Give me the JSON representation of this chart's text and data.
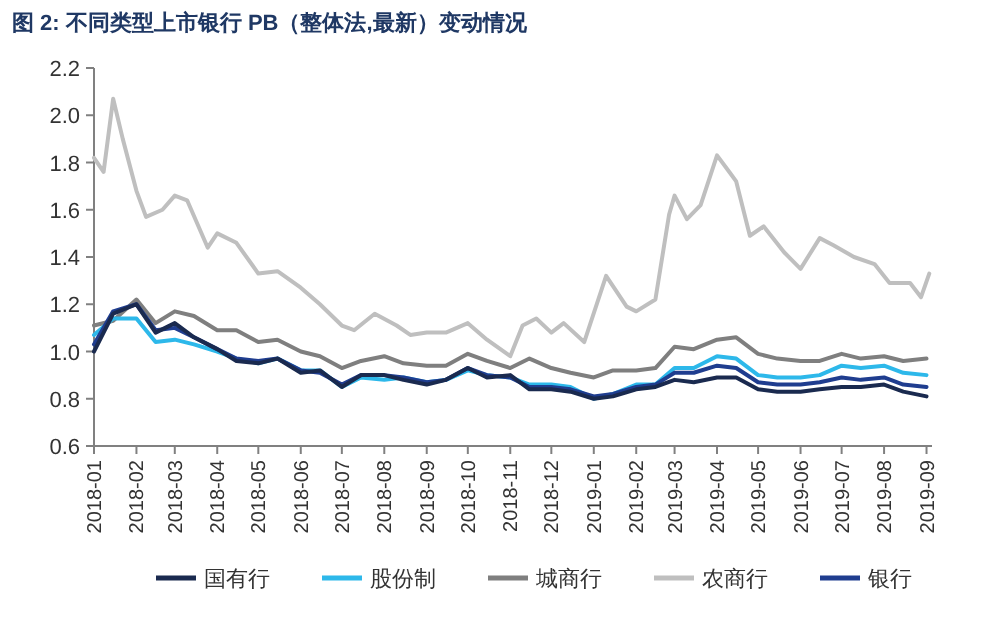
{
  "chart_data": {
    "type": "line",
    "title": "图 2:  不同类型上市银行 PB（整体法,最新）变动情况",
    "x": [
      "2018-01-01",
      "2018-01-15",
      "2018-02-01",
      "2018-02-15",
      "2018-03-01",
      "2018-03-15",
      "2018-04-01",
      "2018-04-15",
      "2018-05-01",
      "2018-05-15",
      "2018-06-01",
      "2018-06-15",
      "2018-07-01",
      "2018-07-15",
      "2018-08-01",
      "2018-08-15",
      "2018-09-01",
      "2018-09-15",
      "2018-10-01",
      "2018-10-15",
      "2018-11-01",
      "2018-11-15",
      "2018-12-01",
      "2018-12-15",
      "2019-01-01",
      "2019-01-15",
      "2019-02-01",
      "2019-02-15",
      "2019-03-01",
      "2019-03-15",
      "2019-04-01",
      "2019-04-15",
      "2019-05-01",
      "2019-05-15",
      "2019-06-01",
      "2019-06-15",
      "2019-07-01",
      "2019-07-15",
      "2019-08-01",
      "2019-08-15",
      "2019-09-01"
    ],
    "series": [
      {
        "name": "国有行",
        "color": "#1a2a4f",
        "values": [
          1.0,
          1.16,
          1.2,
          1.08,
          1.12,
          1.06,
          1.01,
          0.96,
          0.95,
          0.97,
          0.91,
          0.92,
          0.85,
          0.9,
          0.9,
          0.88,
          0.86,
          0.88,
          0.93,
          0.89,
          0.9,
          0.84,
          0.84,
          0.83,
          0.8,
          0.81,
          0.84,
          0.85,
          0.88,
          0.87,
          0.89,
          0.89,
          0.84,
          0.83,
          0.83,
          0.84,
          0.85,
          0.85,
          0.86,
          0.83,
          0.81
        ]
      },
      {
        "name": "股份制",
        "color": "#2db8ea",
        "values": [
          1.07,
          1.14,
          1.14,
          1.04,
          1.05,
          1.03,
          1.0,
          0.97,
          0.95,
          0.97,
          0.92,
          0.92,
          0.85,
          0.89,
          0.88,
          0.89,
          0.87,
          0.88,
          0.92,
          0.9,
          0.89,
          0.86,
          0.86,
          0.85,
          0.8,
          0.82,
          0.86,
          0.86,
          0.93,
          0.93,
          0.98,
          0.97,
          0.9,
          0.89,
          0.89,
          0.9,
          0.94,
          0.93,
          0.94,
          0.91,
          0.9
        ]
      },
      {
        "name": "城商行",
        "color": "#7f7f7f",
        "values": [
          1.11,
          1.13,
          1.22,
          1.12,
          1.17,
          1.15,
          1.09,
          1.09,
          1.04,
          1.05,
          1.0,
          0.98,
          0.93,
          0.96,
          0.98,
          0.95,
          0.94,
          0.94,
          0.99,
          0.96,
          0.93,
          0.97,
          0.93,
          0.91,
          0.89,
          0.92,
          0.92,
          0.93,
          1.02,
          1.01,
          1.05,
          1.06,
          0.99,
          0.97,
          0.96,
          0.96,
          0.99,
          0.97,
          0.98,
          0.96,
          0.97
        ]
      },
      {
        "name": "农商行",
        "color": "#bfbfbf",
        "x": [
          "2018-01-01",
          "2018-01-08",
          "2018-01-15",
          "2018-01-22",
          "2018-02-01",
          "2018-02-08",
          "2018-02-20",
          "2018-03-01",
          "2018-03-10",
          "2018-03-25",
          "2018-04-01",
          "2018-04-15",
          "2018-05-01",
          "2018-05-15",
          "2018-06-01",
          "2018-06-15",
          "2018-07-01",
          "2018-07-10",
          "2018-07-25",
          "2018-08-10",
          "2018-08-20",
          "2018-09-01",
          "2018-09-15",
          "2018-10-01",
          "2018-10-15",
          "2018-11-01",
          "2018-11-10",
          "2018-11-20",
          "2018-12-01",
          "2018-12-10",
          "2018-12-25",
          "2019-01-10",
          "2019-01-25",
          "2019-02-01",
          "2019-02-15",
          "2019-02-25",
          "2019-03-01",
          "2019-03-10",
          "2019-03-20",
          "2019-04-01",
          "2019-04-10",
          "2019-04-15",
          "2019-04-25",
          "2019-05-05",
          "2019-05-20",
          "2019-06-01",
          "2019-06-15",
          "2019-06-25",
          "2019-07-10",
          "2019-07-25",
          "2019-08-05",
          "2019-08-20",
          "2019-08-28",
          "2019-09-03"
        ],
        "values": [
          1.82,
          1.76,
          2.07,
          1.9,
          1.68,
          1.57,
          1.6,
          1.66,
          1.64,
          1.44,
          1.5,
          1.46,
          1.33,
          1.34,
          1.27,
          1.2,
          1.11,
          1.09,
          1.16,
          1.11,
          1.07,
          1.08,
          1.08,
          1.12,
          1.05,
          0.98,
          1.11,
          1.14,
          1.08,
          1.12,
          1.04,
          1.32,
          1.19,
          1.17,
          1.22,
          1.58,
          1.66,
          1.56,
          1.62,
          1.83,
          1.76,
          1.72,
          1.49,
          1.53,
          1.42,
          1.35,
          1.48,
          1.45,
          1.4,
          1.37,
          1.29,
          1.29,
          1.23,
          1.33
        ]
      },
      {
        "name": "银行",
        "color": "#1f3d8f",
        "values": [
          1.03,
          1.17,
          1.2,
          1.09,
          1.1,
          1.06,
          1.01,
          0.97,
          0.96,
          0.97,
          0.92,
          0.91,
          0.86,
          0.9,
          0.9,
          0.89,
          0.87,
          0.88,
          0.93,
          0.9,
          0.89,
          0.85,
          0.85,
          0.84,
          0.81,
          0.82,
          0.85,
          0.86,
          0.91,
          0.91,
          0.94,
          0.93,
          0.87,
          0.86,
          0.86,
          0.87,
          0.89,
          0.88,
          0.89,
          0.86,
          0.85
        ]
      }
    ],
    "xlim": [
      "2018-01-01",
      "2019-09-05"
    ],
    "xticks": [
      "2018-01",
      "2018-02",
      "2018-03",
      "2018-04",
      "2018-05",
      "2018-06",
      "2018-07",
      "2018-08",
      "2018-09",
      "2018-10",
      "2018-11",
      "2018-12",
      "2019-01",
      "2019-02",
      "2019-03",
      "2019-04",
      "2019-05",
      "2019-06",
      "2019-07",
      "2019-08",
      "2019-09"
    ],
    "ylim": [
      0.6,
      2.2
    ],
    "yticks": [
      {
        "value": 0.6,
        "label": "0.6"
      },
      {
        "value": 0.8,
        "label": "0.8"
      },
      {
        "value": 1.0,
        "label": "1.0"
      },
      {
        "value": 1.2,
        "label": "1.2"
      },
      {
        "value": 1.4,
        "label": "1.4"
      },
      {
        "value": 1.6,
        "label": "1.6"
      },
      {
        "value": 1.8,
        "label": "1.8"
      },
      {
        "value": 2.0,
        "label": "2.0"
      },
      {
        "value": 2.2,
        "label": "2.2"
      }
    ],
    "grid": false,
    "legend": "bottom",
    "marker": "none",
    "line_style": "solid"
  }
}
